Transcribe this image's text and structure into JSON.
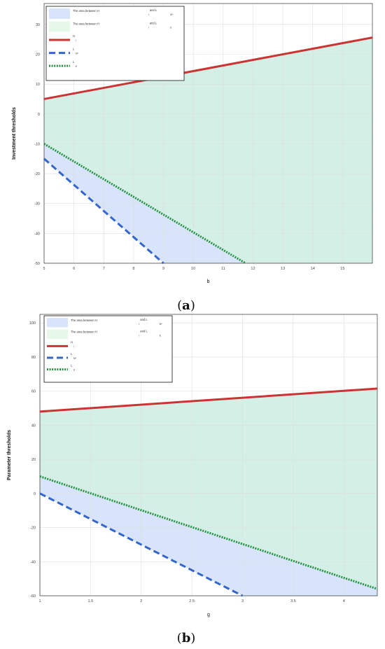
{
  "chart_data": [
    {
      "panel": "a",
      "type": "line",
      "xlabel": "b",
      "ylabel": "Investment thresholds",
      "xlim": [
        5,
        16
      ],
      "ylim": [
        -50,
        37
      ],
      "x_ticks": [
        5,
        6,
        7,
        8,
        9,
        10,
        11,
        12,
        13,
        14,
        15
      ],
      "y_ticks": [
        30,
        20,
        10,
        0,
        -10,
        -20,
        -30,
        -40,
        -50
      ],
      "x_tick_labels": [
        "5",
        "6",
        "7",
        "8",
        "9",
        "10",
        "11",
        "12",
        "13",
        "14",
        "15"
      ],
      "y_tick_labels": [
        "30",
        "20",
        "10",
        "0",
        "-10",
        "-20",
        "-30",
        "-40",
        "-50"
      ],
      "grid": true,
      "legend_position": "top-left",
      "series": [
        {
          "name": "H",
          "sub": "r",
          "x": [
            5,
            16
          ],
          "y": [
            5,
            25.6
          ],
          "color": "#cc3333",
          "style": "solid"
        },
        {
          "name": "L",
          "sub": "M^",
          "x": [
            5,
            9
          ],
          "y": [
            -15,
            -50
          ],
          "color": "#3366cc",
          "style": "dashed"
        },
        {
          "name": "L",
          "sub": "E",
          "x": [
            5,
            11.75
          ],
          "y": [
            -10,
            -50
          ],
          "color": "#22913f",
          "style": "dotted"
        }
      ],
      "areas": [
        {
          "name": "The area between H",
          "mid": "and L",
          "sub1": "r",
          "sub2": "M^",
          "color": "#d8e4fa"
        },
        {
          "name": "The area between H",
          "mid": "and L",
          "sub1": "r",
          "sub2": "E",
          "color": "#e6f8e8"
        }
      ]
    },
    {
      "panel": "b",
      "type": "line",
      "xlabel": "g",
      "ylabel": "Parameter thresholds",
      "xlim": [
        1,
        4.33
      ],
      "ylim": [
        -60,
        105
      ],
      "x_ticks": [
        1,
        1.5,
        2,
        2.5,
        3,
        3.5,
        4
      ],
      "y_ticks": [
        100,
        80,
        60,
        40,
        20,
        0,
        -20,
        -40,
        -60
      ],
      "x_tick_labels": [
        "1",
        "1.5",
        "2",
        "2.5",
        "3",
        "3.5",
        "4"
      ],
      "y_tick_labels": [
        "100",
        "80",
        "60",
        "40",
        "20",
        "0",
        "-20",
        "-40",
        "-60"
      ],
      "grid": true,
      "legend_position": "top-left",
      "series": [
        {
          "name": "H",
          "sub": "r",
          "x": [
            1,
            4.33
          ],
          "y": [
            48,
            61.5
          ],
          "color": "#cc3333",
          "style": "solid"
        },
        {
          "name": "L",
          "sub": "M^",
          "x": [
            1,
            3
          ],
          "y": [
            0,
            -60
          ],
          "color": "#3366cc",
          "style": "dashed"
        },
        {
          "name": "L",
          "sub": "E",
          "x": [
            1,
            4.33
          ],
          "y": [
            10,
            -56
          ],
          "color": "#22913f",
          "style": "dotted"
        }
      ],
      "areas": [
        {
          "name": "The area between H",
          "mid": "and L",
          "sub1": "r",
          "sub2": "M^",
          "color": "#d8e4fa"
        },
        {
          "name": "The area between H",
          "mid": "and L",
          "sub1": "r",
          "sub2": "E",
          "color": "#e6f8e8"
        }
      ]
    }
  ],
  "captions": [
    {
      "open": "(",
      "letter": "a",
      "close": ")"
    },
    {
      "open": "(",
      "letter": "b",
      "close": ")"
    }
  ],
  "colors": {
    "between_regions": "#d4efe6",
    "grid": "#dddddd",
    "axis": "#333333"
  }
}
